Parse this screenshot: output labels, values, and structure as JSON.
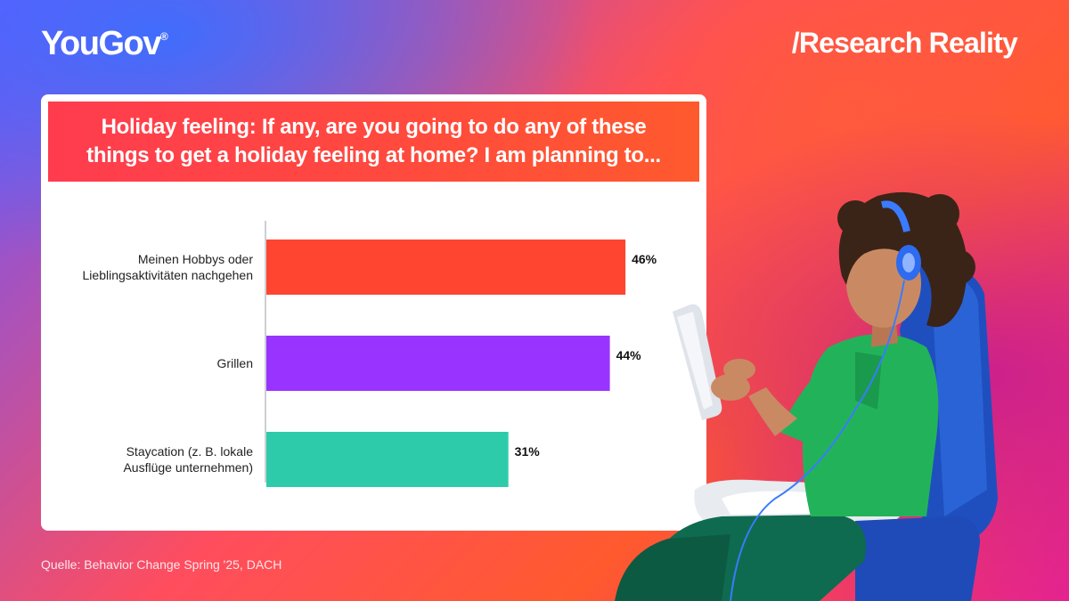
{
  "brand": {
    "logo": "YouGov",
    "logo_mark": "®",
    "tagline": "/Research Reality"
  },
  "question": {
    "line1": "Holiday feeling: If any, are you going to do any of these",
    "line2": "things to get a holiday feeling at home? I am planning to..."
  },
  "chart_data": {
    "type": "bar",
    "orientation": "horizontal",
    "categories": [
      [
        "Meinen Hobbys oder",
        "Lieblingsaktivitäten nachgehen"
      ],
      [
        "Grillen"
      ],
      [
        "Staycation (z. B. lokale",
        "Ausflüge unternehmen)"
      ]
    ],
    "values": [
      46,
      44,
      31
    ],
    "value_labels": [
      "46%",
      "44%",
      "31%"
    ],
    "unit": "%",
    "xlim": [
      0,
      48
    ],
    "colors": [
      "#ff4530",
      "#9933ff",
      "#2ecbaa"
    ],
    "grid": false
  },
  "source": "Quelle: Behavior Change Spring '25, DACH"
}
